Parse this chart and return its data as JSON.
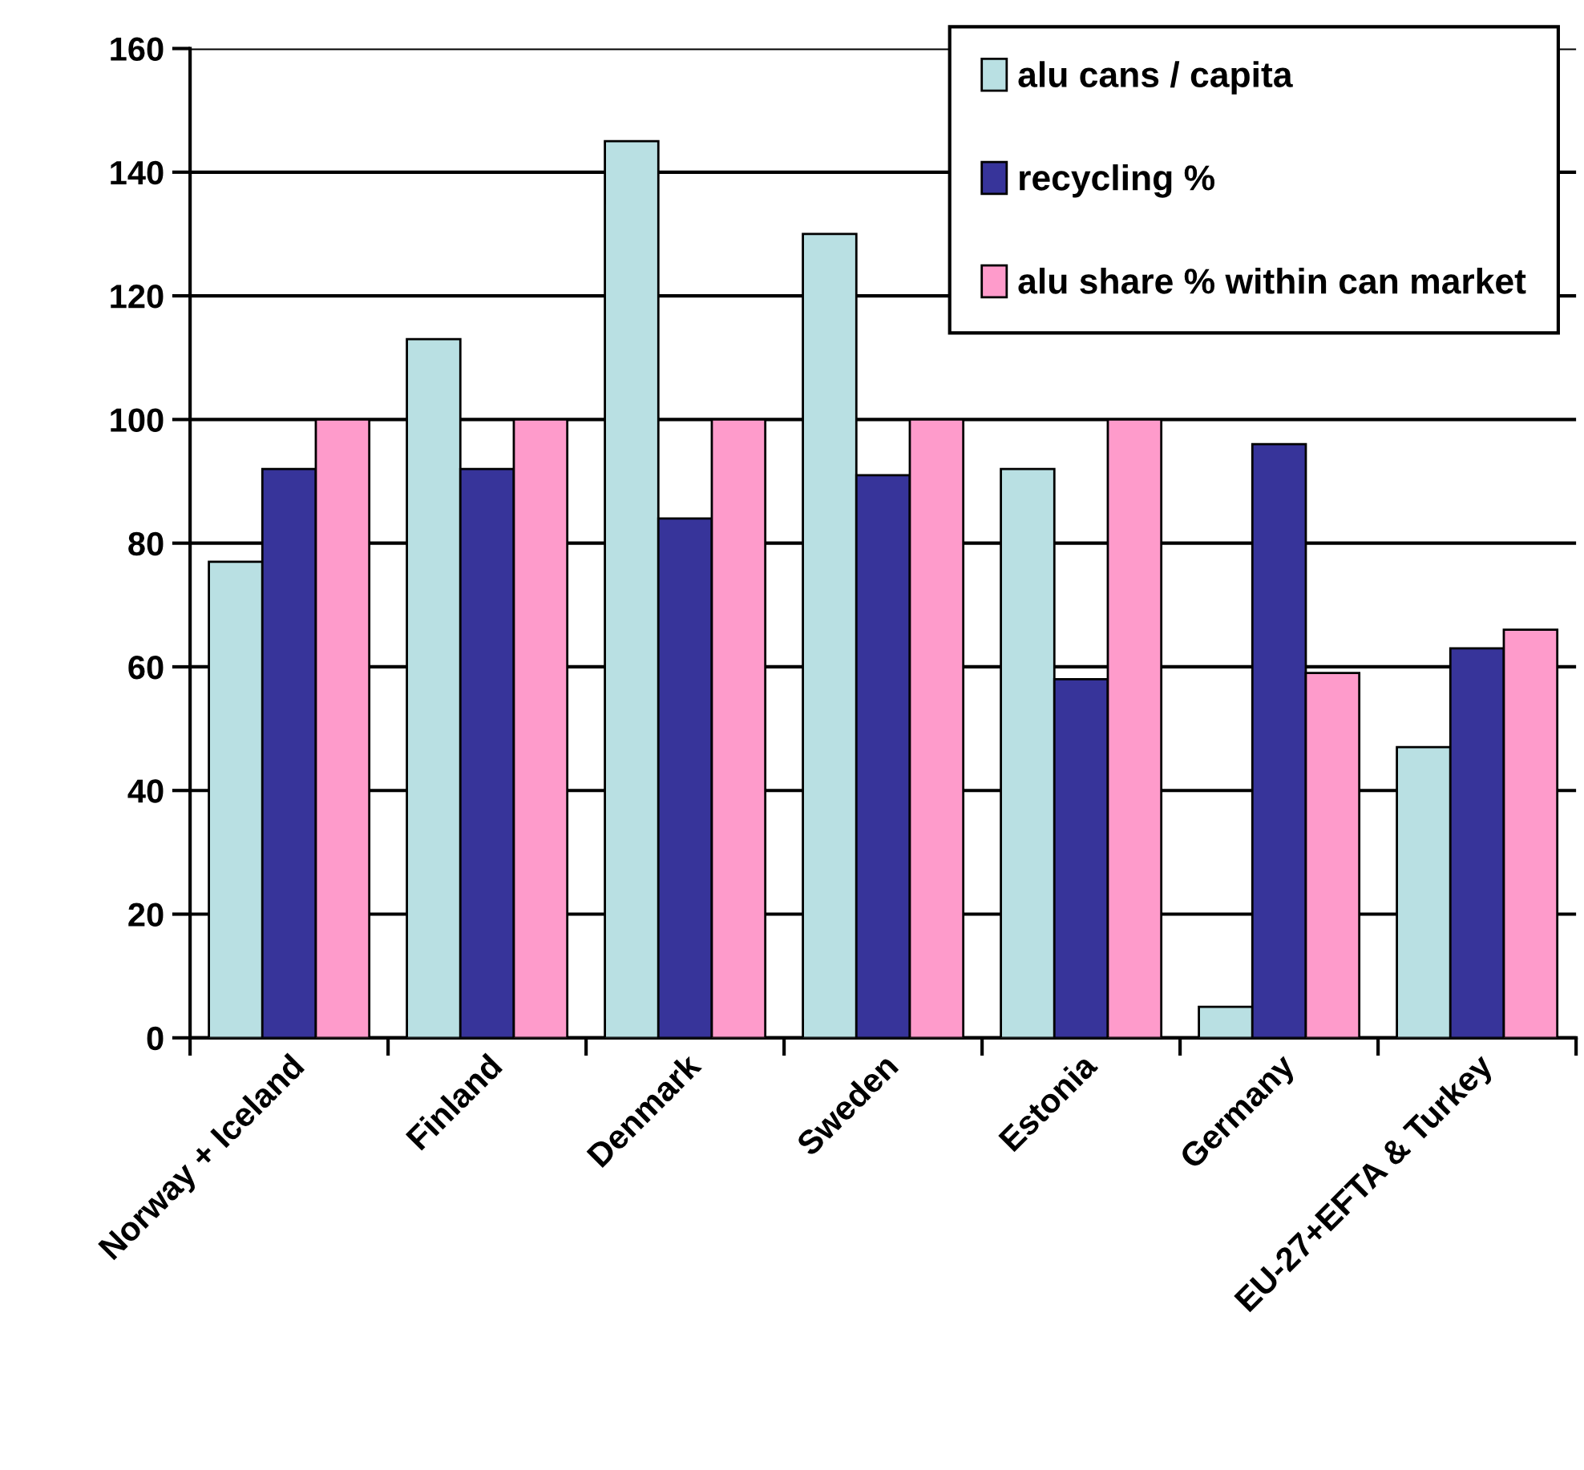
{
  "chart_data": {
    "type": "bar",
    "categories": [
      "Norway + Iceland",
      "Finland",
      "Denmark",
      "Sweden",
      "Estonia",
      "Germany",
      "EU-27+EFTA & Turkey"
    ],
    "series": [
      {
        "name": "alu cans / capita",
        "color": "#b9e0e3",
        "values": [
          77,
          113,
          145,
          130,
          92,
          5,
          47
        ]
      },
      {
        "name": "recycling %",
        "color": "#37349a",
        "values": [
          92,
          92,
          84,
          91,
          58,
          96,
          63
        ]
      },
      {
        "name": "alu share % within can market",
        "color": "#fe9bcb",
        "values": [
          100,
          100,
          100,
          100,
          100,
          59,
          66
        ]
      }
    ],
    "ylim": [
      0,
      160
    ],
    "yticks": [
      0,
      20,
      40,
      60,
      80,
      100,
      120,
      140,
      160
    ],
    "grid": "y",
    "legend": "top right"
  }
}
